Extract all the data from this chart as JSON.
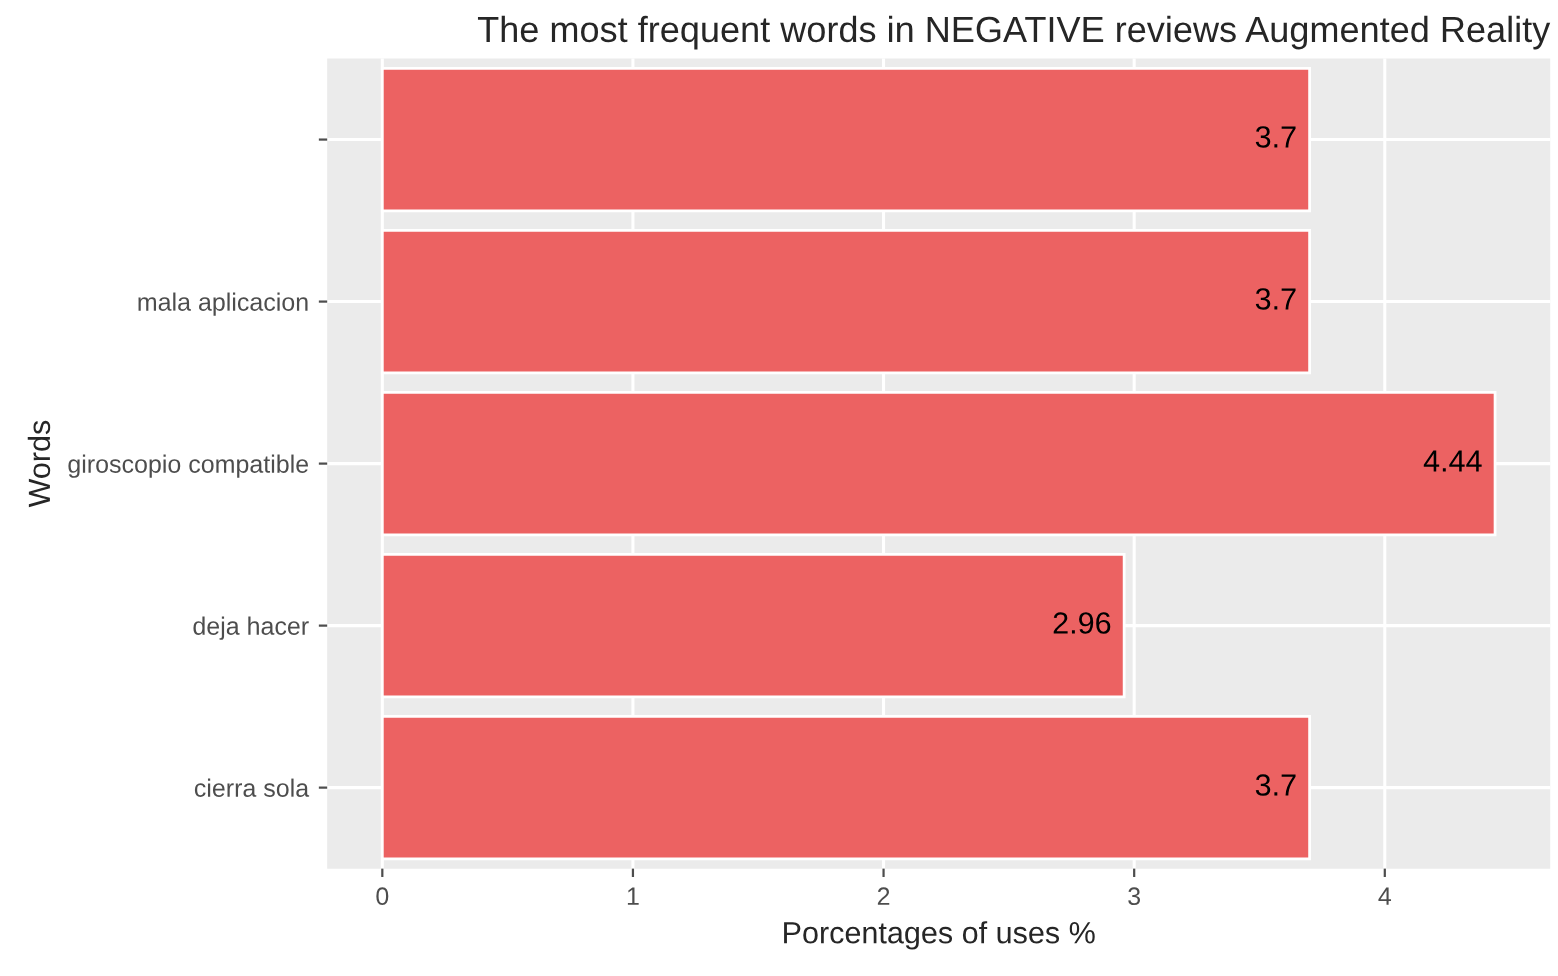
{
  "chart_data": {
    "type": "bar",
    "orientation": "horizontal",
    "title": "The most frequent words in NEGATIVE reviews Augmented Reality",
    "xlabel": "Porcentages of uses %",
    "ylabel": "Words",
    "categories": [
      null,
      "mala aplicacion",
      "giroscopio compatible",
      "deja hacer",
      "cierra sola"
    ],
    "values": [
      3.7,
      3.7,
      4.44,
      2.96,
      3.7
    ],
    "color": "#ec6262",
    "xlim": [
      -0.22,
      4.66
    ],
    "xticks": [
      0,
      1,
      2,
      3,
      4
    ],
    "grid": true,
    "data_labels": true
  }
}
